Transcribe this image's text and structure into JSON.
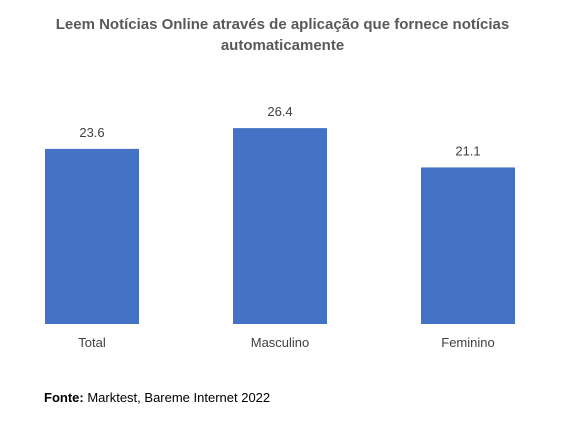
{
  "chart_data": {
    "type": "bar",
    "title_lines": [
      "Leem Notícias Online através de aplicação que fornece notícias",
      "automaticamente"
    ],
    "categories": [
      "Total",
      "Masculino",
      "Feminino"
    ],
    "values": [
      23.6,
      26.4,
      21.1
    ],
    "data_labels": [
      "23.6",
      "26.4",
      "21.1"
    ],
    "bar_color": "#4472C4",
    "ylim": [
      0,
      30
    ],
    "grid": false,
    "legend": "none"
  },
  "source": {
    "label": "Fonte:",
    "text": " Marktest, Bareme Internet 2022"
  }
}
